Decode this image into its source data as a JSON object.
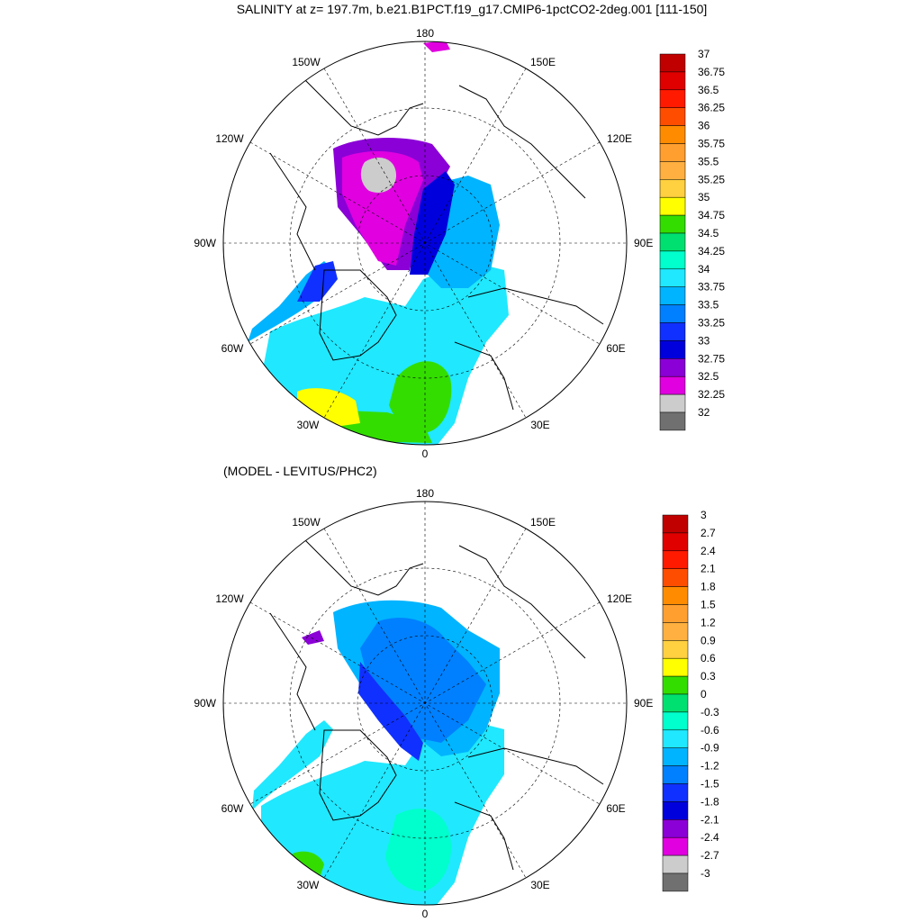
{
  "figure": {
    "title": "SALINITY at z= 197.7m, b.e21.B1PCT.f19_g17.CMIP6-1pctCO2-2deg.001 [111-150]",
    "subtitle": "(MODEL - LEVITUS/PHC2)"
  },
  "map_labels": {
    "top": "180",
    "bottom": "0",
    "left": "90W",
    "right": "90E",
    "upper_left_1": "150W",
    "upper_left_2": "120W",
    "upper_right_1": "150E",
    "upper_right_2": "120E",
    "lower_left_1": "60W",
    "lower_left_2": "30W",
    "lower_right_1": "60E",
    "lower_right_2": "30E"
  },
  "colorbar_top": {
    "labels": [
      "37",
      "36.75",
      "36.5",
      "36.25",
      "36",
      "35.75",
      "35.5",
      "35.25",
      "35",
      "34.75",
      "34.5",
      "34.25",
      "34",
      "33.75",
      "33.5",
      "33.25",
      "33",
      "32.75",
      "32.5",
      "32.25",
      "32"
    ],
    "colors": [
      "#c00000",
      "#e00000",
      "#ff1a00",
      "#ff4d00",
      "#ff8c00",
      "#ff9f30",
      "#ffb040",
      "#ffd040",
      "#ffff00",
      "#33dd00",
      "#00e070",
      "#00ffcc",
      "#20e8ff",
      "#00b4ff",
      "#0080ff",
      "#1030ff",
      "#0000dd",
      "#8a00d6",
      "#e000e0",
      "#cccccc"
    ]
  },
  "colorbar_bottom": {
    "labels": [
      "3",
      "2.7",
      "2.4",
      "2.1",
      "1.8",
      "1.5",
      "1.2",
      "0.9",
      "0.6",
      "0.3",
      "0",
      "-0.3",
      "-0.6",
      "-0.9",
      "-1.2",
      "-1.5",
      "-1.8",
      "-2.1",
      "-2.4",
      "-2.7",
      "-3"
    ],
    "colors": [
      "#c00000",
      "#e00000",
      "#ff1a00",
      "#ff4d00",
      "#ff8c00",
      "#ff9f30",
      "#ffb040",
      "#ffd040",
      "#ffff00",
      "#33dd00",
      "#00e070",
      "#00ffcc",
      "#20e8ff",
      "#00b4ff",
      "#0080ff",
      "#1030ff",
      "#0000dd",
      "#8a00d6",
      "#e000e0",
      "#cccccc"
    ]
  },
  "colors": {
    "land_outline": "#000000",
    "missing_gray": "#707070"
  }
}
